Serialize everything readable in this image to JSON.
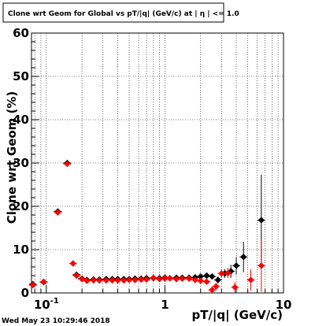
{
  "chart_data": {
    "type": "scatter",
    "title": "Clone wrt Geom for Global vs pT/|q| (GeV/c) at | η | <= 1.0",
    "xlabel": "pT/|q| (GeV/c)",
    "ylabel": "Clone wrt Geom (%)",
    "xscale": "log",
    "xlim": [
      0.075,
      10
    ],
    "ylim": [
      0,
      60
    ],
    "grid": true,
    "yticks": [
      {
        "value": 0,
        "label": "0"
      },
      {
        "value": 10,
        "label": "10"
      },
      {
        "value": 20,
        "label": "20"
      },
      {
        "value": 30,
        "label": "30"
      },
      {
        "value": 40,
        "label": "40"
      },
      {
        "value": 50,
        "label": "50"
      },
      {
        "value": 60,
        "label": "60"
      }
    ],
    "xticks": [
      {
        "value": 0.1,
        "label": "10",
        "sup": "-1"
      },
      {
        "value": 1,
        "label": "1",
        "sup": ""
      },
      {
        "value": 10,
        "label": "10",
        "sup": ""
      }
    ],
    "series": [
      {
        "color": "#000000",
        "marker": "diamond",
        "points": [
          {
            "x": 0.077,
            "y": 2.0,
            "err": 0.6
          },
          {
            "x": 0.095,
            "y": 2.5,
            "err": 0.5
          },
          {
            "x": 0.125,
            "y": 18.8,
            "err": 0.5
          },
          {
            "x": 0.15,
            "y": 30.0,
            "err": 0.6
          },
          {
            "x": 0.18,
            "y": 4.2,
            "err": 0.4
          },
          {
            "x": 0.2,
            "y": 3.3,
            "err": 0.3
          },
          {
            "x": 0.22,
            "y": 3.0,
            "err": 0.3
          },
          {
            "x": 0.25,
            "y": 3.1,
            "err": 0.2
          },
          {
            "x": 0.28,
            "y": 3.1,
            "err": 0.2
          },
          {
            "x": 0.32,
            "y": 3.2,
            "err": 0.2
          },
          {
            "x": 0.36,
            "y": 3.2,
            "err": 0.2
          },
          {
            "x": 0.4,
            "y": 3.2,
            "err": 0.2
          },
          {
            "x": 0.45,
            "y": 3.2,
            "err": 0.2
          },
          {
            "x": 0.5,
            "y": 3.2,
            "err": 0.2
          },
          {
            "x": 0.56,
            "y": 3.3,
            "err": 0.2
          },
          {
            "x": 0.63,
            "y": 3.3,
            "err": 0.2
          },
          {
            "x": 0.7,
            "y": 3.4,
            "err": 0.3
          },
          {
            "x": 0.8,
            "y": 3.4,
            "err": 0.3
          },
          {
            "x": 0.9,
            "y": 3.4,
            "err": 0.3
          },
          {
            "x": 1.0,
            "y": 3.5,
            "err": 0.3
          },
          {
            "x": 1.1,
            "y": 3.4,
            "err": 0.3
          },
          {
            "x": 1.25,
            "y": 3.5,
            "err": 0.3
          },
          {
            "x": 1.4,
            "y": 3.5,
            "err": 0.4
          },
          {
            "x": 1.6,
            "y": 3.5,
            "err": 0.4
          },
          {
            "x": 1.8,
            "y": 3.6,
            "err": 0.4
          },
          {
            "x": 2.0,
            "y": 3.8,
            "err": 0.5
          },
          {
            "x": 2.25,
            "y": 4.0,
            "err": 0.5
          },
          {
            "x": 2.5,
            "y": 3.8,
            "err": 0.6
          },
          {
            "x": 2.8,
            "y": 3.0,
            "err": 0.8
          },
          {
            "x": 3.2,
            "y": 4.5,
            "err": 1.0
          },
          {
            "x": 3.6,
            "y": 5.0,
            "err": 1.5
          },
          {
            "x": 4.0,
            "y": 6.3,
            "err": 2.0
          },
          {
            "x": 4.6,
            "y": 8.3,
            "err": 3.5
          },
          {
            "x": 6.5,
            "y": 16.8,
            "err": 10.5
          }
        ]
      },
      {
        "color": "#ff0000",
        "marker": "diamond",
        "points": [
          {
            "x": 0.077,
            "y": 1.8,
            "err": 0.6
          },
          {
            "x": 0.095,
            "y": 2.6,
            "err": 0.5
          },
          {
            "x": 0.125,
            "y": 18.6,
            "err": 0.5
          },
          {
            "x": 0.15,
            "y": 29.8,
            "err": 0.6
          },
          {
            "x": 0.168,
            "y": 6.8,
            "err": 0.5
          },
          {
            "x": 0.18,
            "y": 4.0,
            "err": 0.4
          },
          {
            "x": 0.2,
            "y": 3.2,
            "err": 0.3
          },
          {
            "x": 0.22,
            "y": 2.8,
            "err": 0.3
          },
          {
            "x": 0.25,
            "y": 2.9,
            "err": 0.2
          },
          {
            "x": 0.28,
            "y": 2.9,
            "err": 0.2
          },
          {
            "x": 0.32,
            "y": 2.9,
            "err": 0.2
          },
          {
            "x": 0.36,
            "y": 2.9,
            "err": 0.2
          },
          {
            "x": 0.4,
            "y": 2.9,
            "err": 0.2
          },
          {
            "x": 0.45,
            "y": 2.9,
            "err": 0.2
          },
          {
            "x": 0.5,
            "y": 3.0,
            "err": 0.2
          },
          {
            "x": 0.56,
            "y": 3.0,
            "err": 0.2
          },
          {
            "x": 0.63,
            "y": 3.1,
            "err": 0.2
          },
          {
            "x": 0.7,
            "y": 3.1,
            "err": 0.3
          },
          {
            "x": 0.8,
            "y": 3.5,
            "err": 0.3
          },
          {
            "x": 0.9,
            "y": 3.2,
            "err": 0.3
          },
          {
            "x": 1.0,
            "y": 3.3,
            "err": 0.3
          },
          {
            "x": 1.1,
            "y": 3.4,
            "err": 0.3
          },
          {
            "x": 1.25,
            "y": 3.2,
            "err": 0.3
          },
          {
            "x": 1.4,
            "y": 3.3,
            "err": 0.4
          },
          {
            "x": 1.6,
            "y": 3.3,
            "err": 0.4
          },
          {
            "x": 1.8,
            "y": 3.0,
            "err": 0.4
          },
          {
            "x": 2.0,
            "y": 2.8,
            "err": 0.5
          },
          {
            "x": 2.25,
            "y": 2.6,
            "err": 0.6
          },
          {
            "x": 2.5,
            "y": 0.7,
            "err": 0.6
          },
          {
            "x": 2.7,
            "y": 1.5,
            "err": 0.8
          },
          {
            "x": 3.0,
            "y": 4.5,
            "err": 1.0
          },
          {
            "x": 3.4,
            "y": 4.6,
            "err": 1.2
          },
          {
            "x": 3.9,
            "y": 1.3,
            "err": 1.2
          },
          {
            "x": 5.3,
            "y": 3.0,
            "err": 2.5
          },
          {
            "x": 6.5,
            "y": 6.3,
            "err": 6.0
          }
        ]
      }
    ]
  },
  "timestamp": "Wed May 23 10:29:46 2018"
}
